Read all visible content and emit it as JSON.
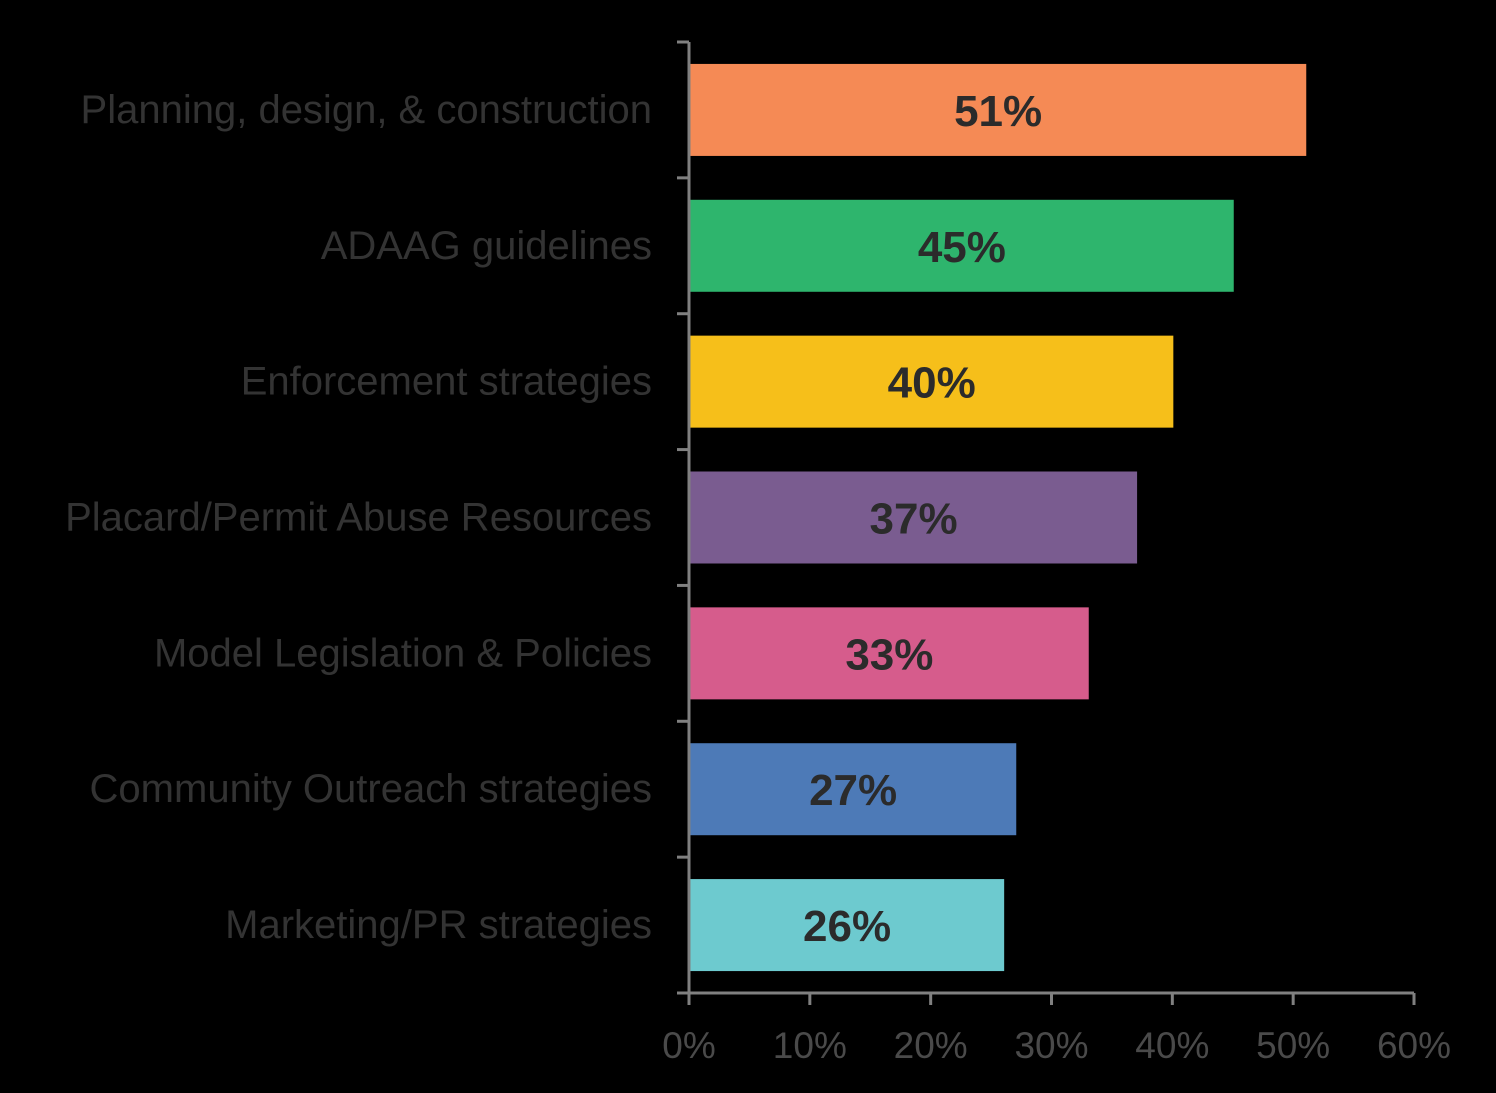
{
  "chart_data": {
    "type": "bar",
    "orientation": "horizontal",
    "categories": [
      "Planning, design, & construction",
      "ADAAG guidelines",
      "Enforcement strategies",
      "Placard/Permit Abuse Resources",
      "Model Legislation & Policies",
      "Community Outreach strategies",
      "Marketing/PR strategies"
    ],
    "values": [
      51,
      45,
      40,
      37,
      33,
      27,
      26
    ],
    "value_labels": [
      "51%",
      "45%",
      "40%",
      "37%",
      "33%",
      "27%",
      "26%"
    ],
    "colors": [
      "#F58A55",
      "#2EB56D",
      "#F6BF1A",
      "#7A5C90",
      "#D65C8C",
      "#4D7AB7",
      "#6DCACF"
    ],
    "xlim": [
      0,
      60
    ],
    "xticks": [
      0,
      10,
      20,
      30,
      40,
      50,
      60
    ],
    "xtick_labels": [
      "0%",
      "10%",
      "20%",
      "30%",
      "40%",
      "50%",
      "60%"
    ],
    "title": "",
    "xlabel": "",
    "ylabel": "",
    "grid": false,
    "legend": "none"
  }
}
